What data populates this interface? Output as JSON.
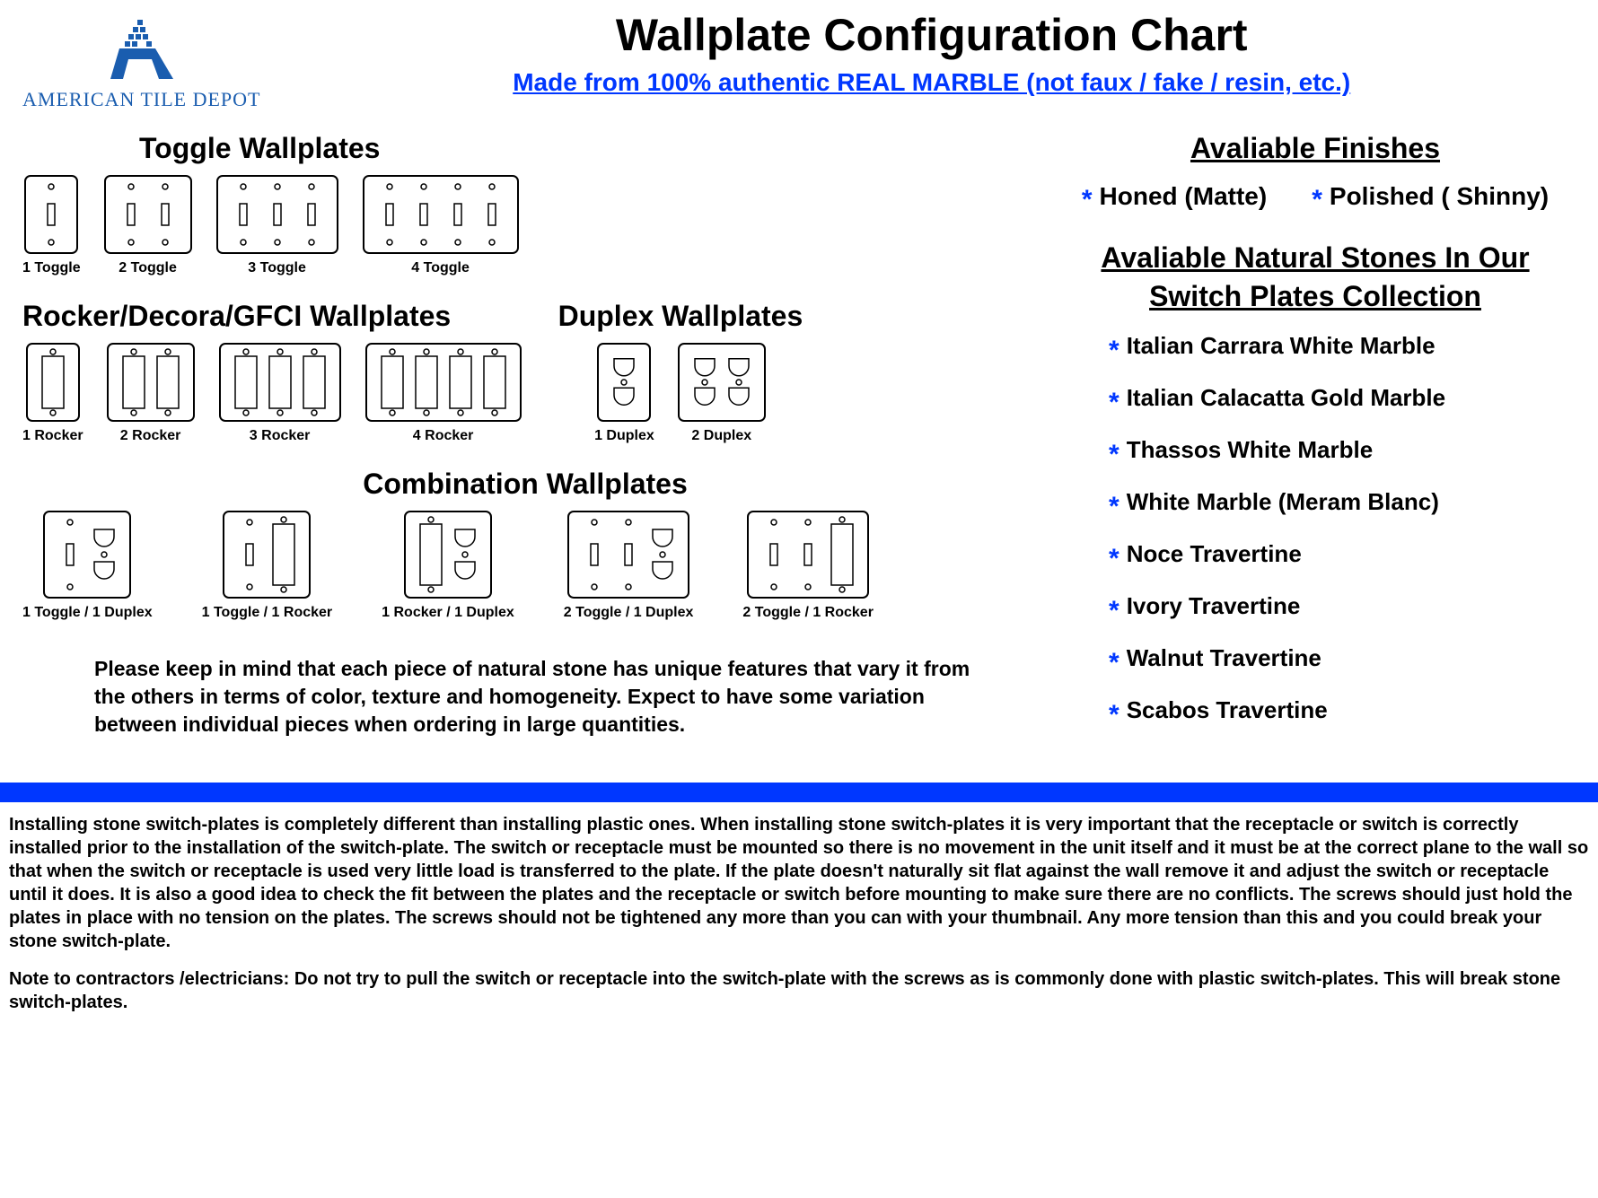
{
  "logo": {
    "company": "AMERICAN TILE DEPOT"
  },
  "header": {
    "title": "Wallplate Configuration Chart",
    "subtitle": "Made from 100% authentic REAL MARBLE (not faux / fake / resin, etc.)"
  },
  "sections": {
    "toggle": {
      "title": "Toggle Wallplates",
      "items": [
        "1 Toggle",
        "2 Toggle",
        "3 Toggle",
        "4 Toggle"
      ]
    },
    "rocker": {
      "title": "Rocker/Decora/GFCI Wallplates",
      "items": [
        "1 Rocker",
        "2 Rocker",
        "3 Rocker",
        "4 Rocker"
      ]
    },
    "duplex": {
      "title": "Duplex Wallplates",
      "items": [
        "1 Duplex",
        "2 Duplex"
      ]
    },
    "combo": {
      "title": "Combination Wallplates",
      "items": [
        "1 Toggle / 1 Duplex",
        "1 Toggle / 1 Rocker",
        "1 Rocker / 1 Duplex",
        "2 Toggle / 1 Duplex",
        "2 Toggle / 1 Rocker"
      ]
    }
  },
  "finishes": {
    "title": "Avaliable Finishes",
    "items": [
      "Honed (Matte)",
      "Polished ( Shinny)"
    ]
  },
  "stones": {
    "title": "Avaliable Natural Stones In Our Switch Plates Collection",
    "items": [
      "Italian Carrara White Marble",
      "Italian Calacatta Gold Marble",
      "Thassos White Marble",
      "White Marble (Meram Blanc)",
      "Noce Travertine",
      "Ivory Travertine",
      "Walnut Travertine",
      "Scabos Travertine"
    ]
  },
  "disclaimer": "Please keep in mind that each piece of natural stone has unique features that vary it from the others in terms of color, texture and homogeneity. Expect to have some variation between individual pieces when ordering in large quantities.",
  "instructions": {
    "p1": "Installing stone switch-plates is completely different than installing plastic ones. When installing stone switch-plates it is very important that the receptacle or switch is correctly installed prior to the installation of the switch-plate. The switch or receptacle must be mounted so there is no movement in the unit itself and it must be at the correct plane to the wall so that when the switch or receptacle is used very little load is transferred to the plate. If the plate doesn't naturally sit flat against the wall remove it and adjust the switch or receptacle until it does. It is also a good idea to check the fit between the plates and the receptacle or switch before mounting to make sure there are no conflicts. The screws should just hold the plates in place with no tension on the plates. The screws should not be tightened any more than you can with your thumbnail. Any more tension than this and you could break your stone switch-plate.",
    "p2": "Note to contractors /electricians: Do not try to pull the switch or receptacle into the switch-plate with the screws as is commonly done with plastic switch-plates. This will break stone switch-plates."
  },
  "colors": {
    "accent_blue": "#0037ff",
    "logo_blue": "#1a5daf",
    "bg": "#ffffff",
    "plate_stroke": "#000000"
  },
  "plate_style": {
    "stroke_width": 2,
    "corner_radius": 6,
    "gang_width": 38,
    "plate_height": 90,
    "combo_height": 100
  }
}
